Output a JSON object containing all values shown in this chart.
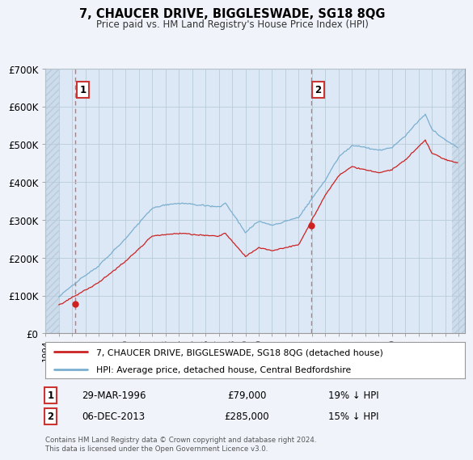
{
  "title": "7, CHAUCER DRIVE, BIGGLESWADE, SG18 8QG",
  "subtitle": "Price paid vs. HM Land Registry's House Price Index (HPI)",
  "hpi_label": "HPI: Average price, detached house, Central Bedfordshire",
  "property_label": "7, CHAUCER DRIVE, BIGGLESWADE, SG18 8QG (detached house)",
  "sale1_price": 79000,
  "sale1_label": "29-MAR-1996",
  "sale1_text": "19% ↓ HPI",
  "sale1_year": 1996.24,
  "sale2_price": 285000,
  "sale2_label": "06-DEC-2013",
  "sale2_text": "15% ↓ HPI",
  "sale2_year": 2013.92,
  "xmin": 1994.0,
  "xmax": 2025.5,
  "data_xmin": 1995.0,
  "data_xmax": 2024.5,
  "ymin": 0,
  "ymax": 700000,
  "yticks": [
    0,
    100000,
    200000,
    300000,
    400000,
    500000,
    600000,
    700000
  ],
  "ytick_labels": [
    "£0",
    "£100K",
    "£200K",
    "£300K",
    "£400K",
    "£500K",
    "£600K",
    "£700K"
  ],
  "bg_color": "#f0f4fa",
  "plot_bg_color": "#dce8f5",
  "hatch_color": "#c8d8e8",
  "grid_color": "#b8ccd8",
  "hpi_color": "#7aafd0",
  "property_color": "#cc2222",
  "sale_dot_color": "#cc2222",
  "dashed_line_color": "#d07070",
  "footer_text": "Contains HM Land Registry data © Crown copyright and database right 2024.\nThis data is licensed under the Open Government Licence v3.0."
}
